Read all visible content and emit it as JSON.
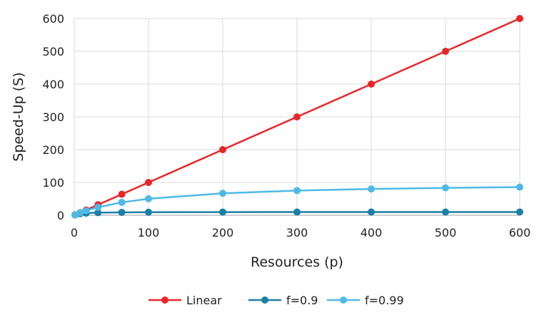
{
  "chart_data": {
    "type": "line",
    "title": "",
    "xlabel": "Resources (p)",
    "ylabel": "Speed-Up (S)",
    "xlim": [
      0,
      600
    ],
    "ylim": [
      0,
      600
    ],
    "xticks": [
      0,
      100,
      200,
      300,
      400,
      500,
      600
    ],
    "yticks": [
      0,
      100,
      200,
      300,
      400,
      500,
      600
    ],
    "grid": true,
    "legend_position": "bottom",
    "x": [
      1,
      8,
      16,
      32,
      64,
      100,
      200,
      300,
      400,
      500,
      600
    ],
    "series": [
      {
        "name": "Linear",
        "color": "#e8262a",
        "values": [
          1,
          8,
          16,
          32,
          64,
          100,
          200,
          300,
          400,
          500,
          600
        ]
      },
      {
        "name": "f=0.9",
        "color": "#1b7fa6",
        "values": [
          1,
          4.7,
          6.4,
          7.8,
          8.8,
          9.2,
          9.6,
          9.7,
          9.8,
          9.8,
          9.9
        ]
      },
      {
        "name": "f=0.99",
        "color": "#4fb9e6",
        "values": [
          1,
          7.5,
          13.9,
          24.4,
          39.3,
          50.3,
          66.9,
          75.2,
          80.2,
          83.5,
          85.8
        ]
      }
    ]
  }
}
